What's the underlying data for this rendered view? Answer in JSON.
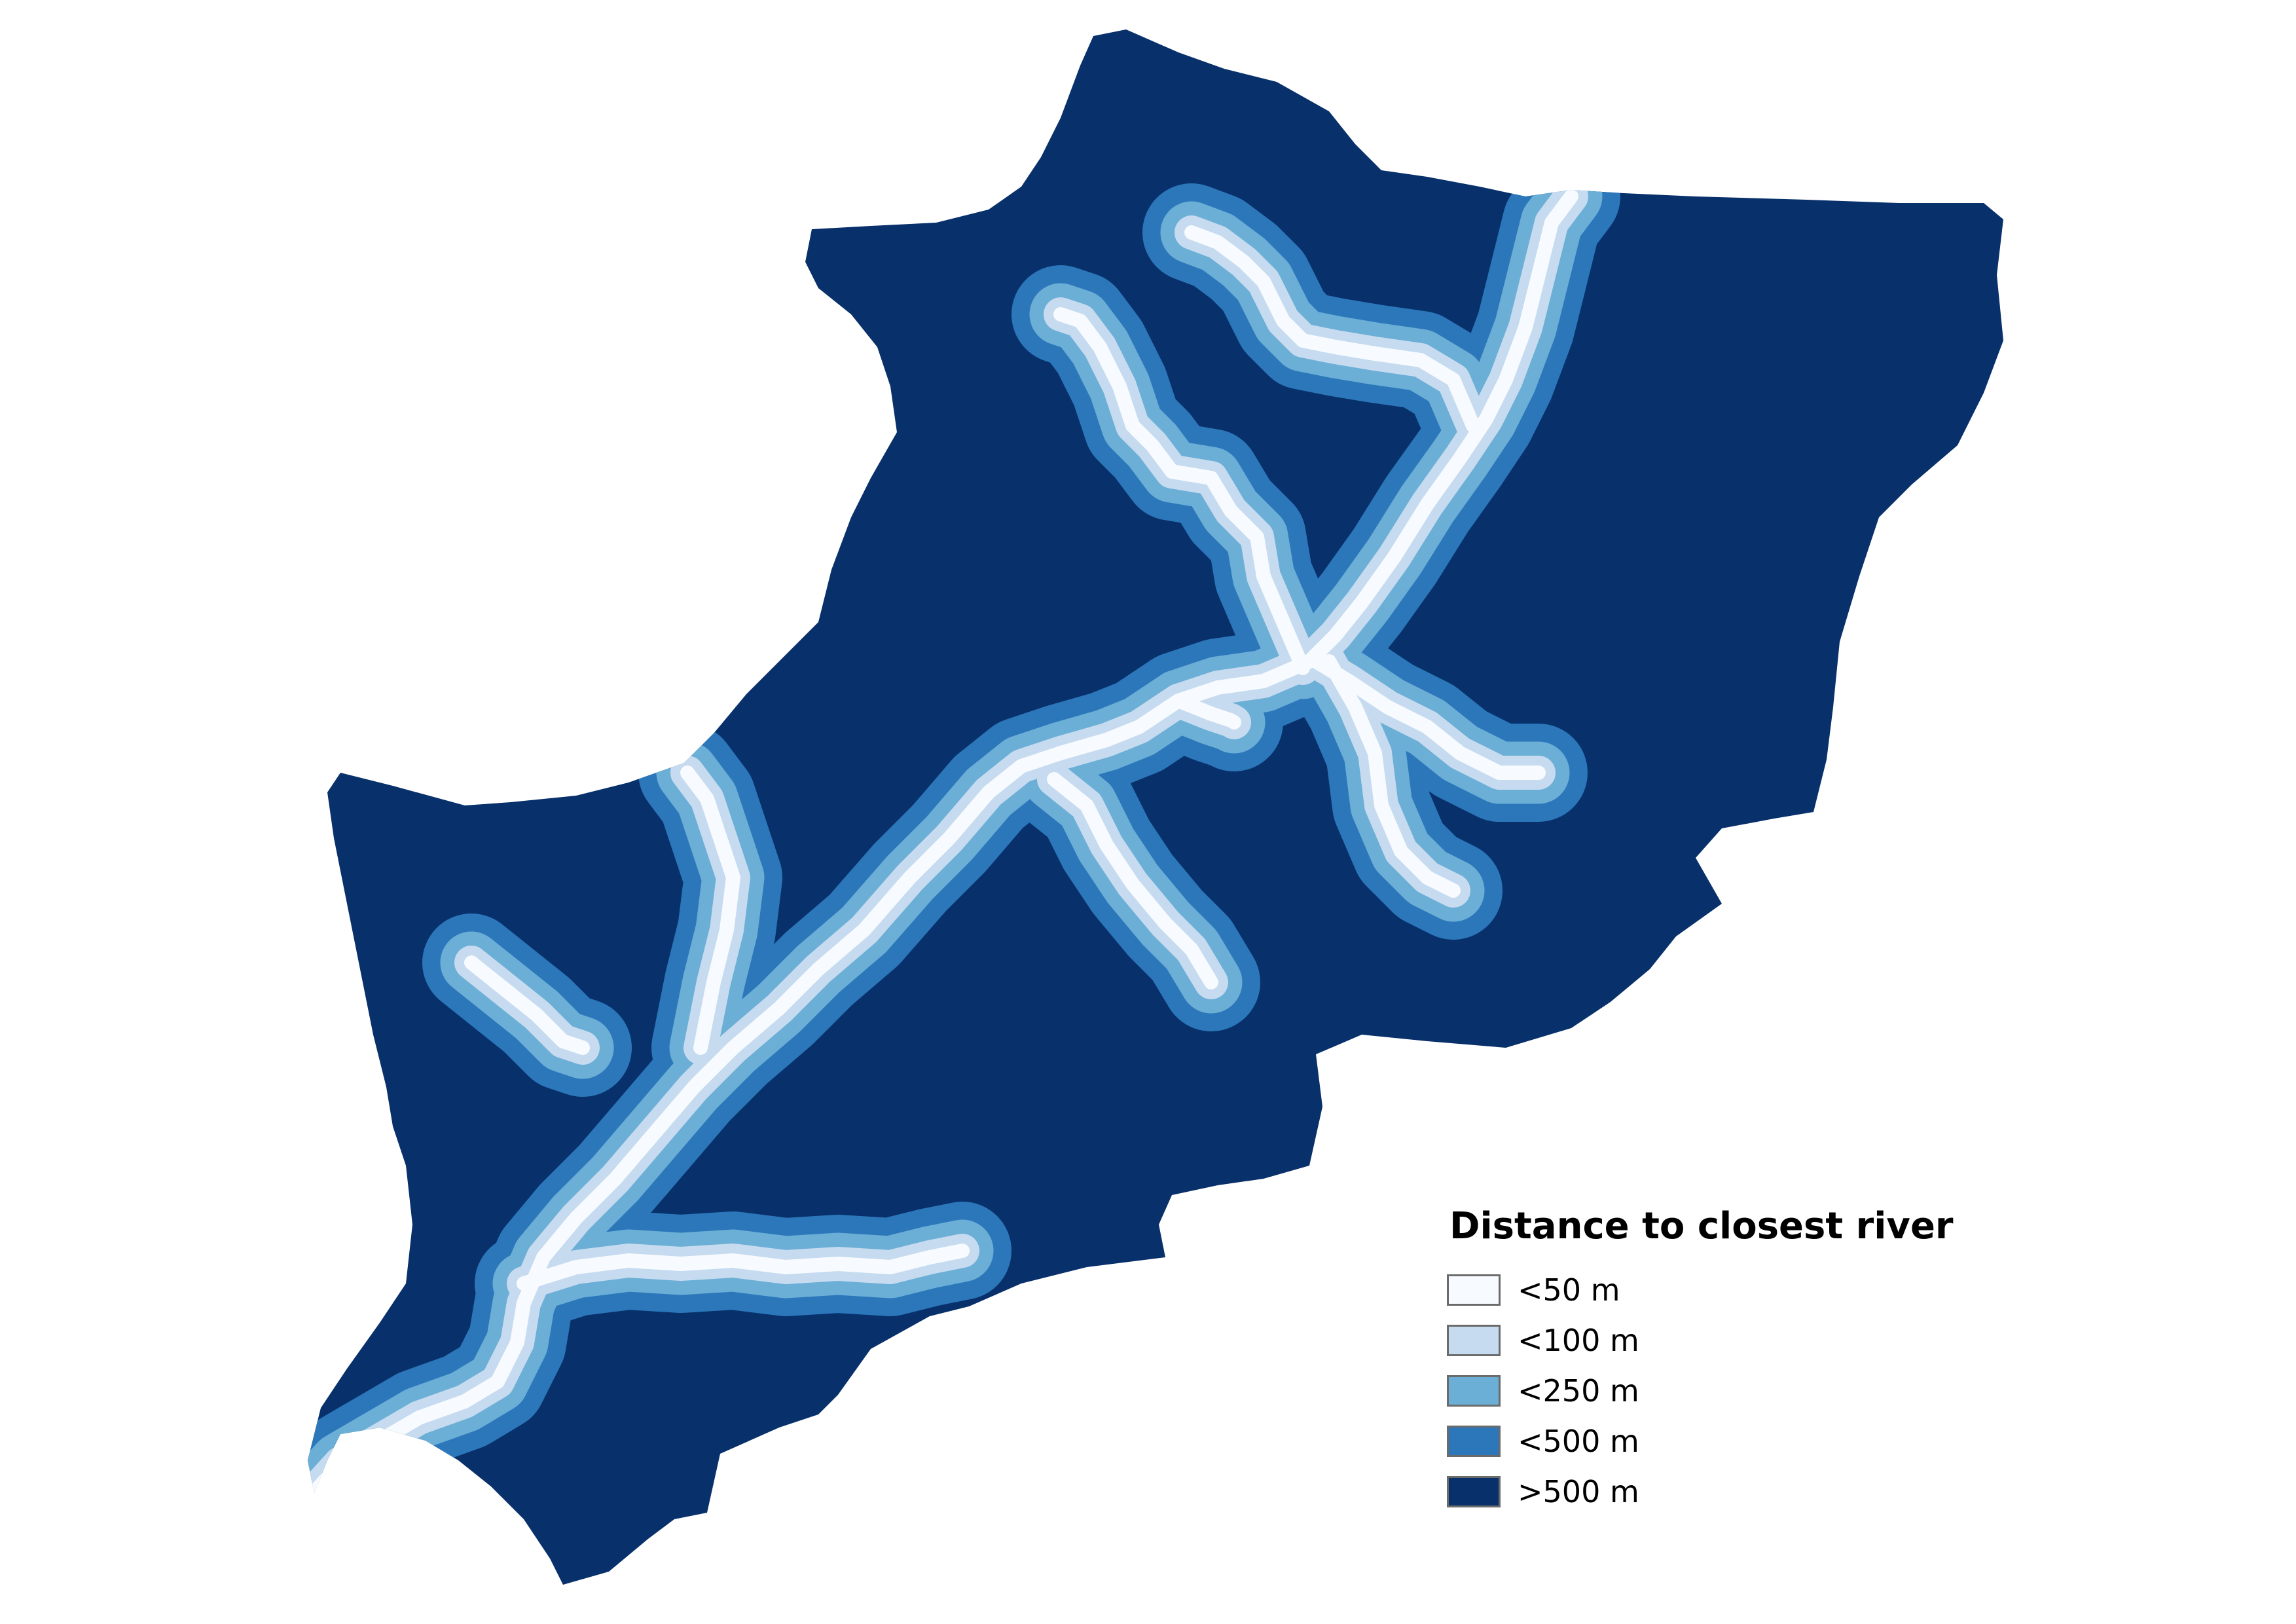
{
  "legend": {
    "title": "Distance to closest river",
    "classes": [
      {
        "label": "<50 m",
        "color": "#f7fbff"
      },
      {
        "label": "<100 m",
        "color": "#c6dbef"
      },
      {
        "label": "<250 m",
        "color": "#6baed6"
      },
      {
        "label": "<500 m",
        "color": "#2b77ba"
      },
      {
        "label": ">500 m",
        "color": "#08306b"
      }
    ]
  },
  "colors": {
    "background": "#ffffff",
    "legend_border": "#6b6b6b"
  }
}
